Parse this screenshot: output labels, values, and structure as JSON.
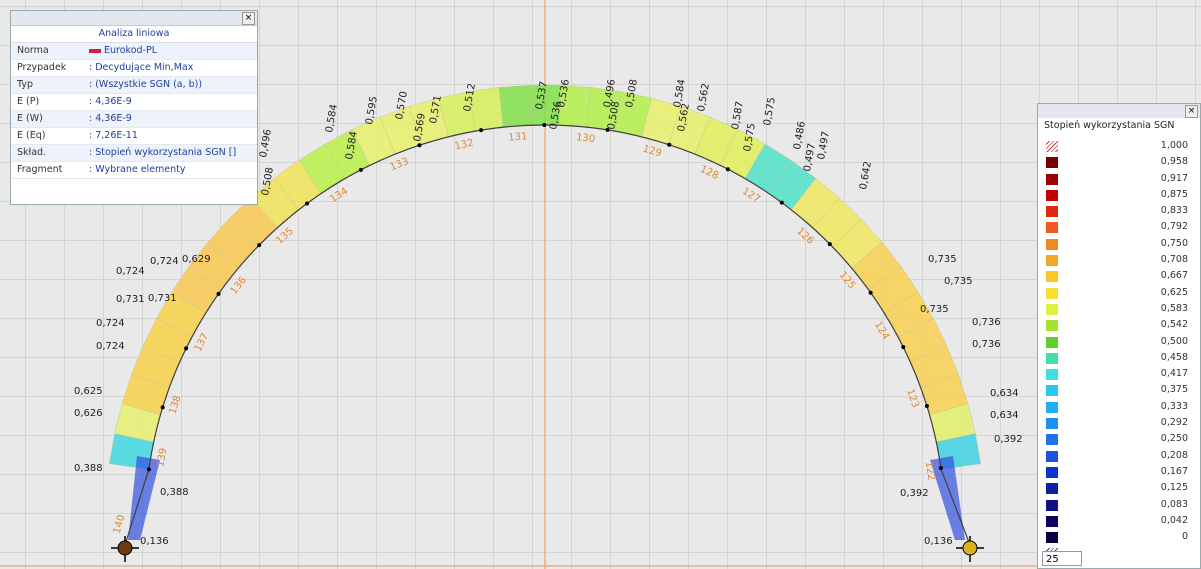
{
  "info_panel": {
    "title": "Analiza liniowa",
    "rows": [
      {
        "label": "Norma",
        "value": "Eurokod-PL"
      },
      {
        "label": "Przypadek",
        "value": ": Decydujące Min,Max"
      },
      {
        "label": "Typ",
        "value": ": (Wszystkie SGN (a, b))"
      },
      {
        "label": "E (P)",
        "value": ": 4,36E-9"
      },
      {
        "label": "E (W)",
        "value": ": 4,36E-9"
      },
      {
        "label": "E (Eq)",
        "value": ": 7,26E-11"
      },
      {
        "label": "Skład.",
        "value": ": Stopień wykorzystania SGN []"
      },
      {
        "label": "Fragment",
        "value": ": Wybrane elementy"
      }
    ]
  },
  "arch": {
    "value_labels": [
      "0,136",
      "0,388",
      "0,388",
      "0,626",
      "0,625",
      "0,724",
      "0,724",
      "0,731",
      "0,731",
      "0,724",
      "0,724",
      "0,629",
      "0,508",
      "0,508",
      "0,496",
      "0,584",
      "0,584",
      "0,595",
      "0,570",
      "0,569",
      "0,571",
      "0,512",
      "0,537",
      "0,536",
      "0,536",
      "0,508",
      "0,496",
      "0,508",
      "0,584",
      "0,562",
      "0,562",
      "0,587",
      "0,575",
      "0,575",
      "0,486",
      "0,497",
      "0,497",
      "0,642",
      "0,735",
      "0,735",
      "0,735",
      "0,736",
      "0,736",
      "0,634",
      "0,634",
      "0,392",
      "0,392",
      "0,136"
    ],
    "element_numbers": [
      "140",
      "139",
      "138",
      "137",
      "136",
      "135",
      "134",
      "133",
      "132",
      "131",
      "130",
      "129",
      "128",
      "127",
      "126",
      "125",
      "124",
      "123",
      "122"
    ]
  },
  "legend": {
    "title": "Stopień wykorzystania SGN",
    "input": "25",
    "items": [
      {
        "label": "1,000",
        "color": "#c02020"
      },
      {
        "label": "0,958",
        "color": "#7a0000"
      },
      {
        "label": "0,917",
        "color": "#9c0000"
      },
      {
        "label": "0,875",
        "color": "#c00000"
      },
      {
        "label": "0,833",
        "color": "#e02a10"
      },
      {
        "label": "0,792",
        "color": "#f05a20"
      },
      {
        "label": "0,750",
        "color": "#f08a20"
      },
      {
        "label": "0,708",
        "color": "#f0a828"
      },
      {
        "label": "0,667",
        "color": "#f8c828"
      },
      {
        "label": "0,625",
        "color": "#f8e030"
      },
      {
        "label": "0,583",
        "color": "#e0f040"
      },
      {
        "label": "0,542",
        "color": "#a8e030"
      },
      {
        "label": "0,500",
        "color": "#60d028"
      },
      {
        "label": "0,458",
        "color": "#40e0a8"
      },
      {
        "label": "0,417",
        "color": "#40e0e0"
      },
      {
        "label": "0,375",
        "color": "#28c8f0"
      },
      {
        "label": "0,333",
        "color": "#20b0f0"
      },
      {
        "label": "0,292",
        "color": "#2090f0"
      },
      {
        "label": "0,250",
        "color": "#2070f0"
      },
      {
        "label": "0,208",
        "color": "#2050e0"
      },
      {
        "label": "0,167",
        "color": "#1030d0"
      },
      {
        "label": "0,125",
        "color": "#1020a0"
      },
      {
        "label": "0,083",
        "color": "#101080"
      },
      {
        "label": "0,042",
        "color": "#100060"
      },
      {
        "label": "0",
        "color": "#0a0040"
      }
    ]
  }
}
